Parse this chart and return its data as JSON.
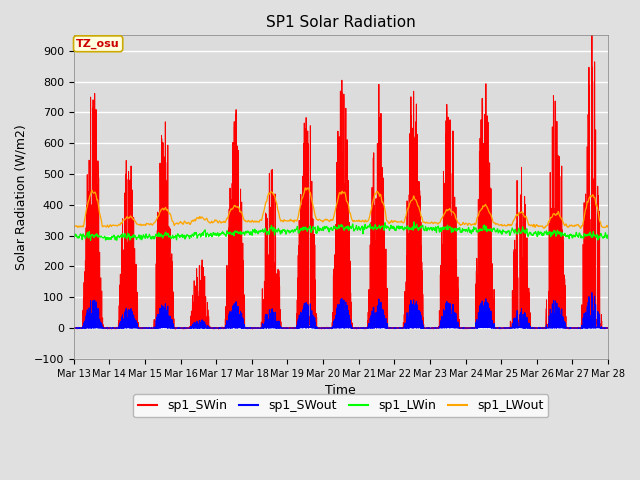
{
  "title": "SP1 Solar Radiation",
  "xlabel": "Time",
  "ylabel": "Solar Radiation (W/m2)",
  "ylim": [
    -100,
    950
  ],
  "yticks": [
    -100,
    0,
    100,
    200,
    300,
    400,
    500,
    600,
    700,
    800,
    900
  ],
  "background_color": "#e8e8e8",
  "plot_background": "#dcdcdc",
  "grid_color": "white",
  "colors": {
    "sp1_SWin": "red",
    "sp1_SWout": "blue",
    "sp1_LWin": "lime",
    "sp1_LWout": "orange"
  },
  "legend_labels": [
    "sp1_SWin",
    "sp1_SWout",
    "sp1_LWin",
    "sp1_LWout"
  ],
  "tz_label": "TZ_osu",
  "num_days": 15,
  "start_day": 13
}
